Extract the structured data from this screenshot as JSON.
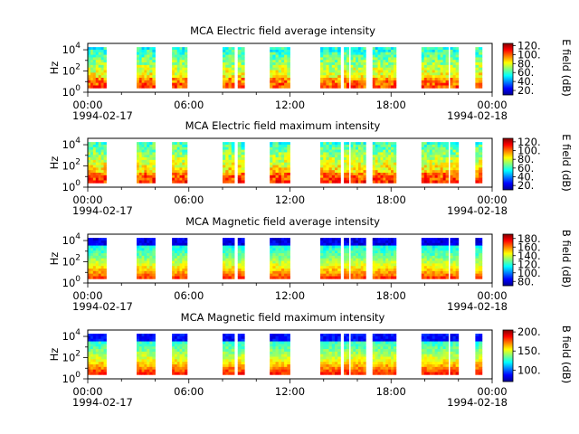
{
  "chart_data": [
    {
      "type": "heatmap",
      "title": "MCA  Electric field average intensity",
      "ylabel": "Hz",
      "y_scale": "log",
      "y_ticks": [
        "10^0",
        "10^2",
        "10^4"
      ],
      "x_ticks": [
        "00:00",
        "06:00",
        "12:00",
        "18:00",
        "00:00"
      ],
      "x_dates": [
        "1994-02-17",
        "1994-02-18"
      ],
      "xlim": [
        "1994-02-17 00:00",
        "1994-02-18 00:00"
      ],
      "colorbar_label": "E field (dB)",
      "colorbar_ticks": [
        "20.",
        "40.",
        "60.",
        "80.",
        "100.",
        "120."
      ],
      "colorbar_range": [
        10,
        125
      ],
      "data_intervals_hours": [
        [
          0.0,
          1.1
        ],
        [
          2.9,
          3.5
        ],
        [
          3.5,
          4.0
        ],
        [
          5.0,
          5.9
        ],
        [
          8.0,
          8.7
        ],
        [
          8.9,
          9.3
        ],
        [
          10.8,
          12.0
        ],
        [
          13.8,
          15.0
        ],
        [
          15.2,
          15.5
        ],
        [
          15.6,
          16.5
        ],
        [
          16.9,
          18.3
        ],
        [
          19.8,
          21.4
        ],
        [
          21.5,
          22.0
        ],
        [
          23.0,
          23.4
        ]
      ]
    },
    {
      "type": "heatmap",
      "title": "MCA  Electric field maximum intensity",
      "ylabel": "Hz",
      "y_scale": "log",
      "y_ticks": [
        "10^0",
        "10^2",
        "10^4"
      ],
      "x_ticks": [
        "00:00",
        "06:00",
        "12:00",
        "18:00",
        "00:00"
      ],
      "x_dates": [
        "1994-02-17",
        "1994-02-18"
      ],
      "xlim": [
        "1994-02-17 00:00",
        "1994-02-18 00:00"
      ],
      "colorbar_label": "E field (dB)",
      "colorbar_ticks": [
        "20.",
        "40.",
        "60.",
        "80.",
        "100.",
        "120."
      ],
      "colorbar_range": [
        10,
        128
      ],
      "data_intervals_hours": [
        [
          0.0,
          1.1
        ],
        [
          2.9,
          3.5
        ],
        [
          3.5,
          4.0
        ],
        [
          5.0,
          5.9
        ],
        [
          8.0,
          8.7
        ],
        [
          8.9,
          9.3
        ],
        [
          10.8,
          12.0
        ],
        [
          13.8,
          15.0
        ],
        [
          15.2,
          15.5
        ],
        [
          15.6,
          16.5
        ],
        [
          16.9,
          18.3
        ],
        [
          19.8,
          21.4
        ],
        [
          21.5,
          22.0
        ],
        [
          23.0,
          23.4
        ]
      ]
    },
    {
      "type": "heatmap",
      "title": "MCA  Magnetic field average intensity",
      "ylabel": "Hz",
      "y_scale": "log",
      "y_ticks": [
        "10^0",
        "10^2",
        "10^4"
      ],
      "x_ticks": [
        "00:00",
        "06:00",
        "12:00",
        "18:00",
        "00:00"
      ],
      "x_dates": [
        "1994-02-17",
        "1994-02-18"
      ],
      "xlim": [
        "1994-02-17 00:00",
        "1994-02-18 00:00"
      ],
      "colorbar_label": "B field (dB)",
      "colorbar_ticks": [
        "80.",
        "100.",
        "120.",
        "140.",
        "160.",
        "180."
      ],
      "colorbar_range": [
        70,
        190
      ],
      "data_intervals_hours": [
        [
          0.0,
          1.1
        ],
        [
          2.9,
          3.5
        ],
        [
          3.5,
          4.0
        ],
        [
          5.0,
          5.9
        ],
        [
          8.0,
          8.7
        ],
        [
          8.9,
          9.3
        ],
        [
          10.8,
          12.0
        ],
        [
          13.8,
          15.0
        ],
        [
          15.2,
          15.5
        ],
        [
          15.6,
          16.5
        ],
        [
          16.9,
          18.3
        ],
        [
          19.8,
          21.4
        ],
        [
          21.5,
          22.0
        ],
        [
          23.0,
          23.4
        ]
      ]
    },
    {
      "type": "heatmap",
      "title": "MCA  Magnetic field maximum intensity",
      "ylabel": "Hz",
      "y_scale": "log",
      "y_ticks": [
        "10^0",
        "10^2",
        "10^4"
      ],
      "x_ticks": [
        "00:00",
        "06:00",
        "12:00",
        "18:00",
        "00:00"
      ],
      "x_dates": [
        "1994-02-17",
        "1994-02-18"
      ],
      "xlim": [
        "1994-02-17 00:00",
        "1994-02-18 00:00"
      ],
      "colorbar_label": "B field (dB)",
      "colorbar_ticks": [
        "100.",
        "150.",
        "200."
      ],
      "colorbar_range": [
        70,
        205
      ],
      "data_intervals_hours": [
        [
          0.0,
          1.1
        ],
        [
          2.9,
          3.5
        ],
        [
          3.5,
          4.0
        ],
        [
          5.0,
          5.9
        ],
        [
          8.0,
          8.7
        ],
        [
          8.9,
          9.3
        ],
        [
          10.8,
          12.0
        ],
        [
          13.8,
          15.0
        ],
        [
          15.2,
          15.5
        ],
        [
          15.6,
          16.5
        ],
        [
          16.9,
          18.3
        ],
        [
          19.8,
          21.4
        ],
        [
          21.5,
          22.0
        ],
        [
          23.0,
          23.4
        ]
      ]
    }
  ]
}
